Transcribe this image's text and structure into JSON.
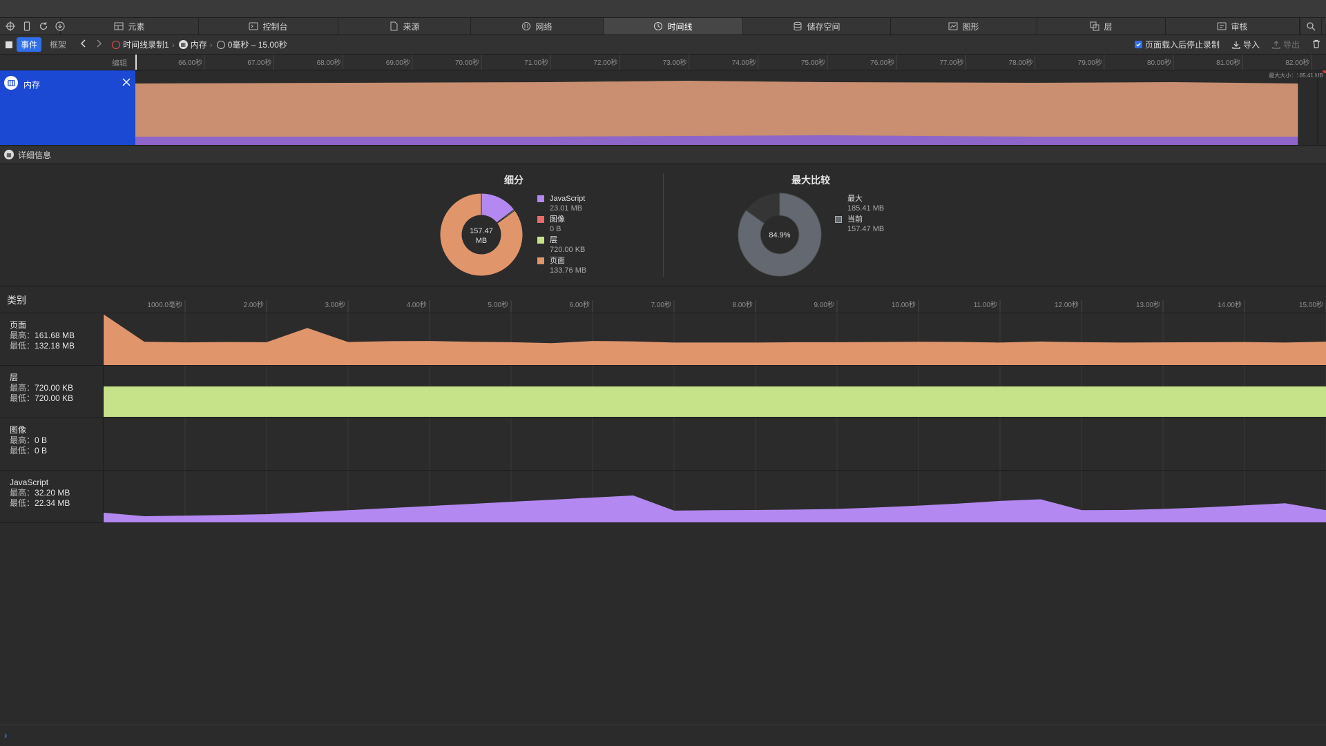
{
  "tabs": [
    {
      "label": "元素",
      "icon": "elements-icon",
      "width": 200
    },
    {
      "label": "控制台",
      "icon": "console-icon",
      "width": 202
    },
    {
      "label": "来源",
      "icon": "sources-icon",
      "width": 192
    },
    {
      "label": "网络",
      "icon": "network-icon",
      "width": 192
    },
    {
      "label": "时间线",
      "icon": "timeline-icon",
      "width": 202,
      "active": true
    },
    {
      "label": "储存空间",
      "icon": "storage-icon",
      "width": 214
    },
    {
      "label": "图形",
      "icon": "graphics-icon",
      "width": 212
    },
    {
      "label": "层",
      "icon": "layers-icon",
      "width": 186
    },
    {
      "label": "审核",
      "icon": "audit-icon",
      "width": 194
    }
  ],
  "toolbar": {
    "mode_events": "事件",
    "mode_frames": "框架",
    "recording": "时间线录制1",
    "instrument": "内存",
    "range": "0毫秒 – 15.00秒",
    "stop_after_load": "页面载入后停止录制",
    "stop_after_load_checked": true,
    "import": "导入",
    "export": "导出"
  },
  "ruler": {
    "edit_label": "编辑",
    "ticks": [
      "66.00秒",
      "67.00秒",
      "68.00秒",
      "69.00秒",
      "70.00秒",
      "71.00秒",
      "72.00秒",
      "73.00秒",
      "74.00秒",
      "75.00秒",
      "76.00秒",
      "77.00秒",
      "78.00秒",
      "79.00秒",
      "80.00秒",
      "81.00秒",
      "82.00秒"
    ]
  },
  "overview": {
    "track_name": "内存",
    "max_size_label": "最大大小：185.41 MB"
  },
  "details": {
    "title": "详细信息"
  },
  "breakdown": {
    "title": "细分",
    "total_value": "157.47",
    "total_unit": "MB",
    "items": [
      {
        "name": "JavaScript",
        "value": "23.01 MB",
        "mb": 23.01,
        "color": "#b388f0"
      },
      {
        "name": "图像",
        "value": "0 B",
        "mb": 0,
        "color": "#ea6b6b"
      },
      {
        "name": "层",
        "value": "720.00 KB",
        "mb": 0.7,
        "color": "#c6e38a"
      },
      {
        "name": "页面",
        "value": "133.76 MB",
        "mb": 133.76,
        "color": "#e0956b"
      }
    ]
  },
  "max_compare": {
    "title": "最大比较",
    "percent": 84.9,
    "percent_label": "84.9%",
    "max_label": "最大",
    "max_value": "185.41 MB",
    "current_label": "当前",
    "current_value": "157.47 MB",
    "current_color": "#646870"
  },
  "categories": {
    "title": "类别",
    "ticks": [
      "1000.0毫秒",
      "2.00秒",
      "3.00秒",
      "4.00秒",
      "5.00秒",
      "6.00秒",
      "7.00秒",
      "8.00秒",
      "9.00秒",
      "10.00秒",
      "11.00秒",
      "12.00秒",
      "13.00秒",
      "14.00秒",
      "15.00秒"
    ],
    "rows": [
      {
        "name": "页面",
        "max": "161.68 MB",
        "min": "132.18 MB",
        "color": "#e0956b"
      },
      {
        "name": "层",
        "max": "720.00 KB",
        "min": "720.00 KB",
        "color": "#c6e38a"
      },
      {
        "name": "图像",
        "max": "0 B",
        "min": "0 B",
        "color": "#ea6b6b"
      },
      {
        "name": "JavaScript",
        "max": "32.20 MB",
        "min": "22.34 MB",
        "color": "#b388f0"
      }
    ],
    "max_label": "最高：",
    "min_label": "最低："
  },
  "chart_data": [
    {
      "type": "area",
      "title": "页面",
      "x": [
        0,
        0.5,
        1,
        1.5,
        2,
        2.5,
        3,
        3.5,
        4,
        4.5,
        5,
        5.5,
        6,
        6.5,
        7,
        7.5,
        8,
        8.5,
        9,
        9.5,
        10,
        10.5,
        11,
        11.5,
        12,
        12.5,
        13,
        13.5,
        14,
        14.5,
        15
      ],
      "y": [
        161.68,
        136,
        135.5,
        135.8,
        135.6,
        149,
        135.8,
        136.6,
        136.8,
        136,
        135.6,
        134.8,
        136.8,
        136.4,
        135.3,
        135.3,
        135.3,
        135.6,
        135.6,
        135.8,
        136,
        135.9,
        135.3,
        136.3,
        135.6,
        135.3,
        135.5,
        135.6,
        135.8,
        135.3,
        136.2
      ],
      "ylim": [
        132.18,
        161.68
      ]
    },
    {
      "type": "area",
      "title": "层",
      "x": [
        0,
        15
      ],
      "y": [
        0.7,
        0.7
      ]
    },
    {
      "type": "area",
      "title": "图像",
      "x": [
        0,
        15
      ],
      "y": [
        0,
        0
      ]
    },
    {
      "type": "area",
      "title": "JavaScript",
      "x": [
        0,
        0.5,
        1,
        1.5,
        2,
        2.5,
        3,
        3.5,
        4,
        4.5,
        5,
        5.5,
        6,
        6.5,
        7,
        7.5,
        8,
        8.5,
        9,
        9.5,
        10,
        10.5,
        11,
        11.5,
        12,
        12.5,
        13,
        13.5,
        14,
        14.5,
        15
      ],
      "y": [
        24.0,
        22.34,
        22.6,
        22.9,
        23.3,
        24.2,
        25.2,
        26.2,
        27.2,
        28.2,
        29.2,
        30.2,
        31.2,
        32.2,
        25.0,
        25.2,
        25.3,
        25.5,
        25.8,
        26.5,
        27.4,
        28.4,
        29.6,
        30.4,
        25.2,
        25.3,
        25.8,
        26.5,
        27.5,
        28.5,
        25.2
      ],
      "ylim": [
        22.34,
        32.2
      ]
    }
  ]
}
